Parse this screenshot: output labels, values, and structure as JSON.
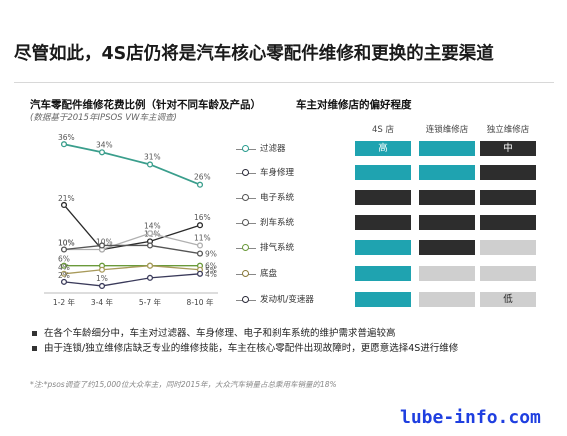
{
  "headline": "尽管如此，4S店仍将是汽车核心零配件维修和更换的主要渠道",
  "left_title": "汽车零配件维修花费比例（针对不同车龄及产品）",
  "left_note": "(数据基于2015年IPSOS VW车主调查)",
  "right_title": "车主对维修店的偏好程度",
  "columns": [
    "4S 店",
    "连锁维修店",
    "独立维修店"
  ],
  "components": [
    {
      "label": "过滤器",
      "color": "#2a9d8f",
      "cells": [
        {
          "shade": "teal",
          "text": "高"
        },
        {
          "shade": "teal",
          "text": ""
        },
        {
          "shade": "dark",
          "text": "中"
        }
      ]
    },
    {
      "label": "车身修理",
      "color": "#2b2b3a",
      "cells": [
        {
          "shade": "teal",
          "text": ""
        },
        {
          "shade": "teal",
          "text": ""
        },
        {
          "shade": "dark",
          "text": ""
        }
      ]
    },
    {
      "label": "电子系统",
      "color": "#555555",
      "cells": [
        {
          "shade": "dark",
          "text": ""
        },
        {
          "shade": "dark",
          "text": ""
        },
        {
          "shade": "dark",
          "text": ""
        }
      ]
    },
    {
      "label": "刹车系统",
      "color": "#555555",
      "cells": [
        {
          "shade": "dark",
          "text": ""
        },
        {
          "shade": "dark",
          "text": ""
        },
        {
          "shade": "dark",
          "text": ""
        }
      ]
    },
    {
      "label": "排气系统",
      "color": "#6a9a3a",
      "cells": [
        {
          "shade": "teal",
          "text": ""
        },
        {
          "shade": "dark",
          "text": ""
        },
        {
          "shade": "light",
          "text": ""
        }
      ]
    },
    {
      "label": "底盘",
      "color": "#8a7a3a",
      "cells": [
        {
          "shade": "teal",
          "text": ""
        },
        {
          "shade": "light",
          "text": ""
        },
        {
          "shade": "light",
          "text": ""
        }
      ]
    },
    {
      "label": "发动机/变速器",
      "color": "#2b2b3a",
      "cells": [
        {
          "shade": "teal",
          "text": ""
        },
        {
          "shade": "light",
          "text": ""
        },
        {
          "shade": "light",
          "text": "低"
        }
      ]
    }
  ],
  "shades": {
    "teal": "#1fa3b0",
    "dark": "#2d2d2d",
    "light": "#cfcfcf"
  },
  "bullets": [
    "在各个车龄细分中，车主对过滤器、车身修理、电子和刹车系统的维护需求普遍较高",
    "由于连锁/独立维修店缺乏专业的维修技能，车主在核心零配件出现故障时，更愿意选择4S进行维修"
  ],
  "footnote": "*注:*psos调查了约15,000位大众车主，同时2015年，大众汽车销量占总乘用车销量的18%",
  "watermark": "lube-info.com",
  "chart_data": {
    "type": "line",
    "categories": [
      "1-2 年",
      "3-4 年",
      "5-7 年",
      "8-10 年"
    ],
    "ylim": [
      0,
      40
    ],
    "series": [
      {
        "color": "#3a9e8c",
        "values": [
          36,
          34,
          31,
          26
        ],
        "labels": [
          "36%",
          "34%",
          "31%",
          "26%"
        ],
        "label_pos": "above"
      },
      {
        "color": "#2a2a2a",
        "values": [
          21,
          10,
          12,
          16
        ],
        "labels": [
          "21%",
          "10%",
          "12%",
          "16%"
        ],
        "label_pos": "above"
      },
      {
        "color": "#b0b0b0",
        "values": [
          10,
          10,
          14,
          11
        ],
        "labels": [
          "10%",
          "",
          "14%",
          "11%"
        ],
        "label_pos": "above"
      },
      {
        "color": "#555555",
        "values": [
          10,
          11,
          11,
          9
        ],
        "labels": [
          "10%",
          "",
          "",
          "9%"
        ],
        "label_pos": "right"
      },
      {
        "color": "#6a9a3a",
        "values": [
          6,
          6,
          6,
          6
        ],
        "labels": [
          "6%",
          "",
          "",
          "6%"
        ],
        "label_pos": "right"
      },
      {
        "color": "#a89a5a",
        "values": [
          4,
          5,
          6,
          5
        ],
        "labels": [
          "4%",
          "",
          "",
          "5%"
        ],
        "label_pos": "right"
      },
      {
        "color": "#3a3a5a",
        "values": [
          2,
          1,
          3,
          4
        ],
        "labels": [
          "2%",
          "1%",
          "",
          "4%"
        ],
        "label_pos": "right"
      }
    ]
  }
}
